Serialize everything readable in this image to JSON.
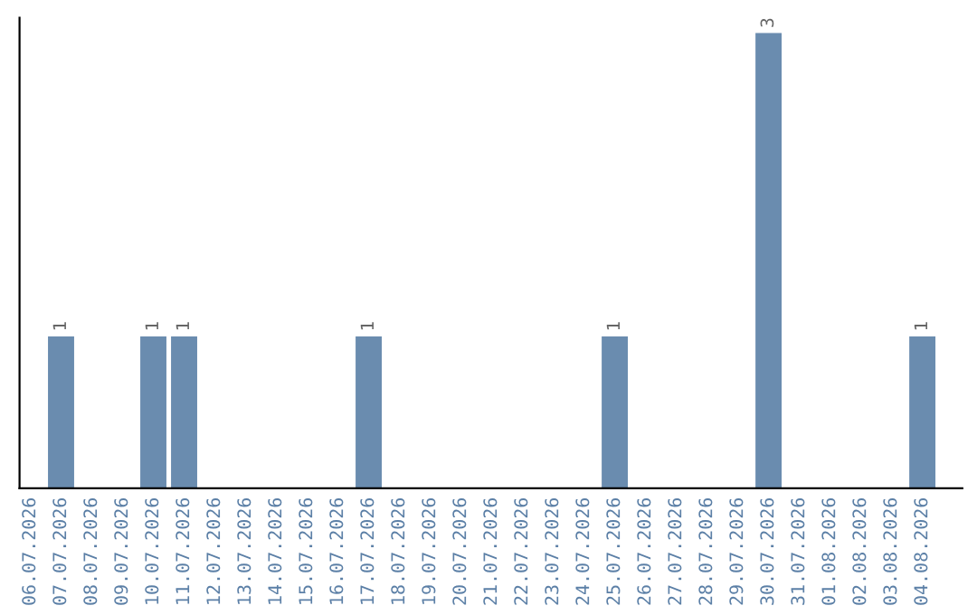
{
  "chart_data": {
    "type": "bar",
    "categories": [
      "06.07.2026",
      "07.07.2026",
      "08.07.2026",
      "09.07.2026",
      "10.07.2026",
      "11.07.2026",
      "12.07.2026",
      "13.07.2026",
      "14.07.2026",
      "15.07.2026",
      "16.07.2026",
      "17.07.2026",
      "18.07.2026",
      "19.07.2026",
      "20.07.2026",
      "21.07.2026",
      "22.07.2026",
      "23.07.2026",
      "24.07.2026",
      "25.07.2026",
      "26.07.2026",
      "27.07.2026",
      "28.07.2026",
      "29.07.2026",
      "30.07.2026",
      "31.07.2026",
      "01.08.2026",
      "02.08.2026",
      "03.08.2026",
      "04.08.2026"
    ],
    "values": [
      0,
      1,
      0,
      0,
      1,
      1,
      0,
      0,
      0,
      0,
      0,
      1,
      0,
      0,
      0,
      0,
      0,
      0,
      0,
      1,
      0,
      0,
      0,
      0,
      3,
      0,
      0,
      0,
      0,
      1
    ],
    "value_labels": [
      null,
      "1",
      null,
      null,
      "1",
      "1",
      null,
      null,
      null,
      null,
      null,
      "1",
      null,
      null,
      null,
      null,
      null,
      null,
      null,
      "1",
      null,
      null,
      null,
      null,
      "3",
      null,
      null,
      null,
      null,
      "1"
    ],
    "color": "#6a8caf",
    "ylim": [
      0,
      3.1
    ],
    "tick_labels": "x",
    "grid": false,
    "legend": false
  }
}
